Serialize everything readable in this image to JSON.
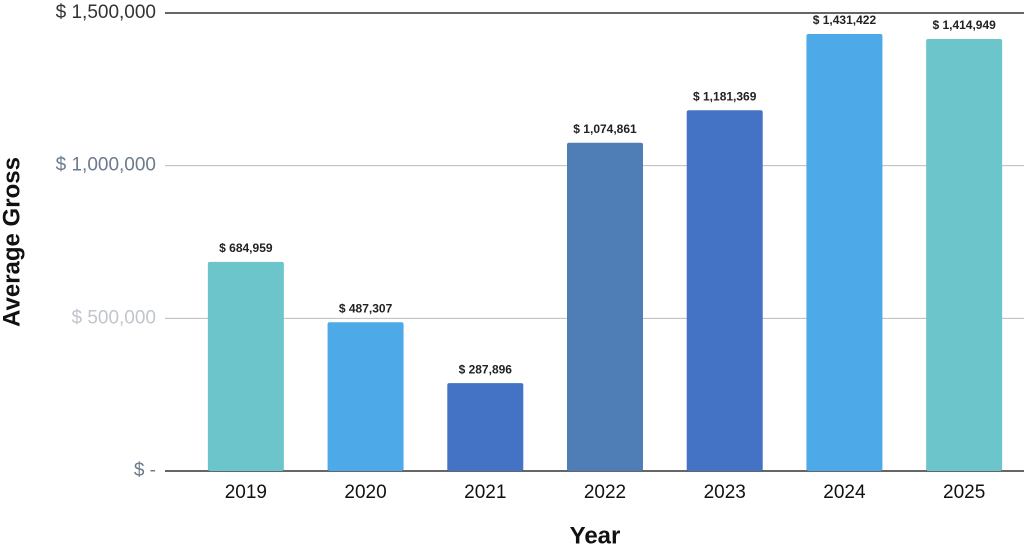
{
  "chart_data": {
    "type": "bar",
    "x_label": "Year",
    "y_label": "Average Gross",
    "categories": [
      "2019",
      "2020",
      "2021",
      "2022",
      "2023",
      "2024",
      "2025"
    ],
    "values": [
      684959,
      487307,
      287896,
      1074861,
      1181369,
      1431422,
      1414949
    ],
    "value_labels": [
      "$ 684,959",
      "$ 487,307",
      "$ 287,896",
      "$ 1,074,861",
      "$ 1,181,369",
      "$ 1,431,422",
      "$ 1,414,949"
    ],
    "colors": [
      "#6cc5cb",
      "#4da9e8",
      "#4472c4",
      "#4f7db5",
      "#4472c4",
      "#4da9e8",
      "#6cc5cb"
    ],
    "ylim": [
      0,
      1500000
    ],
    "yticks": [
      {
        "value": 0,
        "label": "$ -"
      },
      {
        "value": 500000,
        "label": "$ 500,000"
      },
      {
        "value": 1000000,
        "label": "$ 1,000,000"
      },
      {
        "value": 1500000,
        "label": "$ 1,500,000"
      }
    ],
    "ytick_colors": [
      "#6b7b8c",
      "#c0c6cc",
      "#6b7b8c",
      "#333333"
    ],
    "grid": true
  }
}
